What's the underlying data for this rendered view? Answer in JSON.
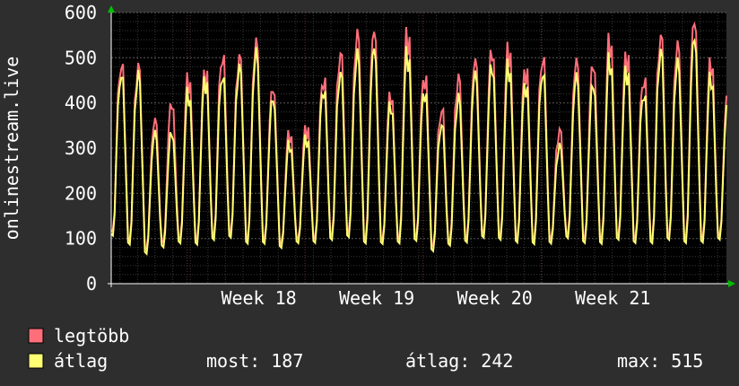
{
  "chart_data": {
    "type": "line",
    "ylabel": "onlinestream.live",
    "ylim": [
      0,
      600
    ],
    "y_ticks": [
      "0",
      "100",
      "200",
      "300",
      "400",
      "500",
      "600"
    ],
    "x_ticks": [
      "Week 18",
      "Week 19",
      "Week 20",
      "Week 21"
    ],
    "grid": true,
    "series": [
      {
        "name": "legtöbb",
        "color": "#ff6f7a",
        "daily_peaks": [
          480,
          465,
          345,
          380,
          440,
          465,
          500,
          490,
          510,
          410,
          320,
          340,
          450,
          500,
          530,
          530,
          400,
          540,
          455,
          380,
          440,
          470,
          490,
          505,
          470,
          495,
          330,
          470,
          460,
          520,
          500,
          450,
          535,
          505,
          550,
          470,
          400
        ]
      },
      {
        "name": "átlag",
        "color": "#ffff73",
        "daily_peaks": [
          460,
          450,
          320,
          320,
          410,
          450,
          460,
          470,
          490,
          390,
          300,
          320,
          430,
          460,
          490,
          495,
          380,
          500,
          425,
          350,
          400,
          445,
          460,
          470,
          440,
          465,
          300,
          440,
          420,
          480,
          470,
          420,
          505,
          470,
          515,
          440,
          380
        ]
      }
    ],
    "daily_troughs": [
      95,
      75,
      60,
      75,
      80,
      75,
      85,
      90,
      75,
      80,
      75,
      85,
      80,
      85,
      90,
      75,
      80,
      75,
      85,
      65,
      75,
      80,
      90,
      85,
      80,
      75,
      85,
      90,
      80,
      75,
      85,
      80,
      75,
      85,
      75,
      80,
      90
    ]
  },
  "legend": {
    "items": [
      {
        "label": "legtöbb",
        "color": "#ff6f7a"
      },
      {
        "label": "átlag",
        "color": "#ffff73"
      }
    ],
    "stats": {
      "most": "most: 187",
      "atlag": "átlag: 242",
      "max": "max: 515"
    }
  },
  "colors": {
    "background": "#2e2e2e",
    "plot_background": "#000000",
    "grid_major": "#4a4a4a",
    "axis_arrow": "#00c000"
  }
}
